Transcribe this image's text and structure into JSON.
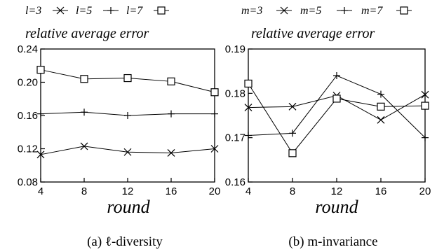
{
  "chart_data": [
    {
      "type": "line",
      "legend_position": "top",
      "ylabel": "relative average error",
      "xlabel": "round",
      "caption": "(a) ℓ-diversity",
      "x": [
        4,
        8,
        12,
        16,
        20
      ],
      "xticks": [
        "4",
        "8",
        "12",
        "16",
        "20"
      ],
      "yticks": [
        "0.08",
        "0.12",
        "0.16",
        "0.20",
        "0.24"
      ],
      "ylim": [
        0.08,
        0.24
      ],
      "xlim": [
        4,
        20
      ],
      "grid": false,
      "series": [
        {
          "name": "l=3",
          "marker": "x",
          "values": [
            0.113,
            0.123,
            0.116,
            0.115,
            0.12
          ]
        },
        {
          "name": "l=5",
          "marker": "plus",
          "values": [
            0.162,
            0.164,
            0.16,
            0.162,
            0.162
          ]
        },
        {
          "name": "l=7",
          "marker": "square",
          "values": [
            0.215,
            0.204,
            0.205,
            0.201,
            0.188
          ]
        }
      ]
    },
    {
      "type": "line",
      "legend_position": "top",
      "ylabel": "relative average error",
      "xlabel": "round",
      "caption": "(b) m-invariance",
      "x": [
        4,
        8,
        12,
        16,
        20
      ],
      "xticks": [
        "4",
        "8",
        "12",
        "16",
        "20"
      ],
      "yticks": [
        "0.16",
        "0.17",
        "0.18",
        "0.19"
      ],
      "ylim": [
        0.16,
        0.19
      ],
      "xlim": [
        4,
        20
      ],
      "grid": false,
      "series": [
        {
          "name": "m=3",
          "marker": "x",
          "values": [
            0.1768,
            0.177,
            0.1795,
            0.174,
            0.1797
          ]
        },
        {
          "name": "m=5",
          "marker": "plus",
          "values": [
            0.1705,
            0.171,
            0.184,
            0.1798,
            0.17
          ]
        },
        {
          "name": "m=7",
          "marker": "square",
          "values": [
            0.1822,
            0.1665,
            0.1788,
            0.177,
            0.1772
          ]
        }
      ]
    }
  ]
}
